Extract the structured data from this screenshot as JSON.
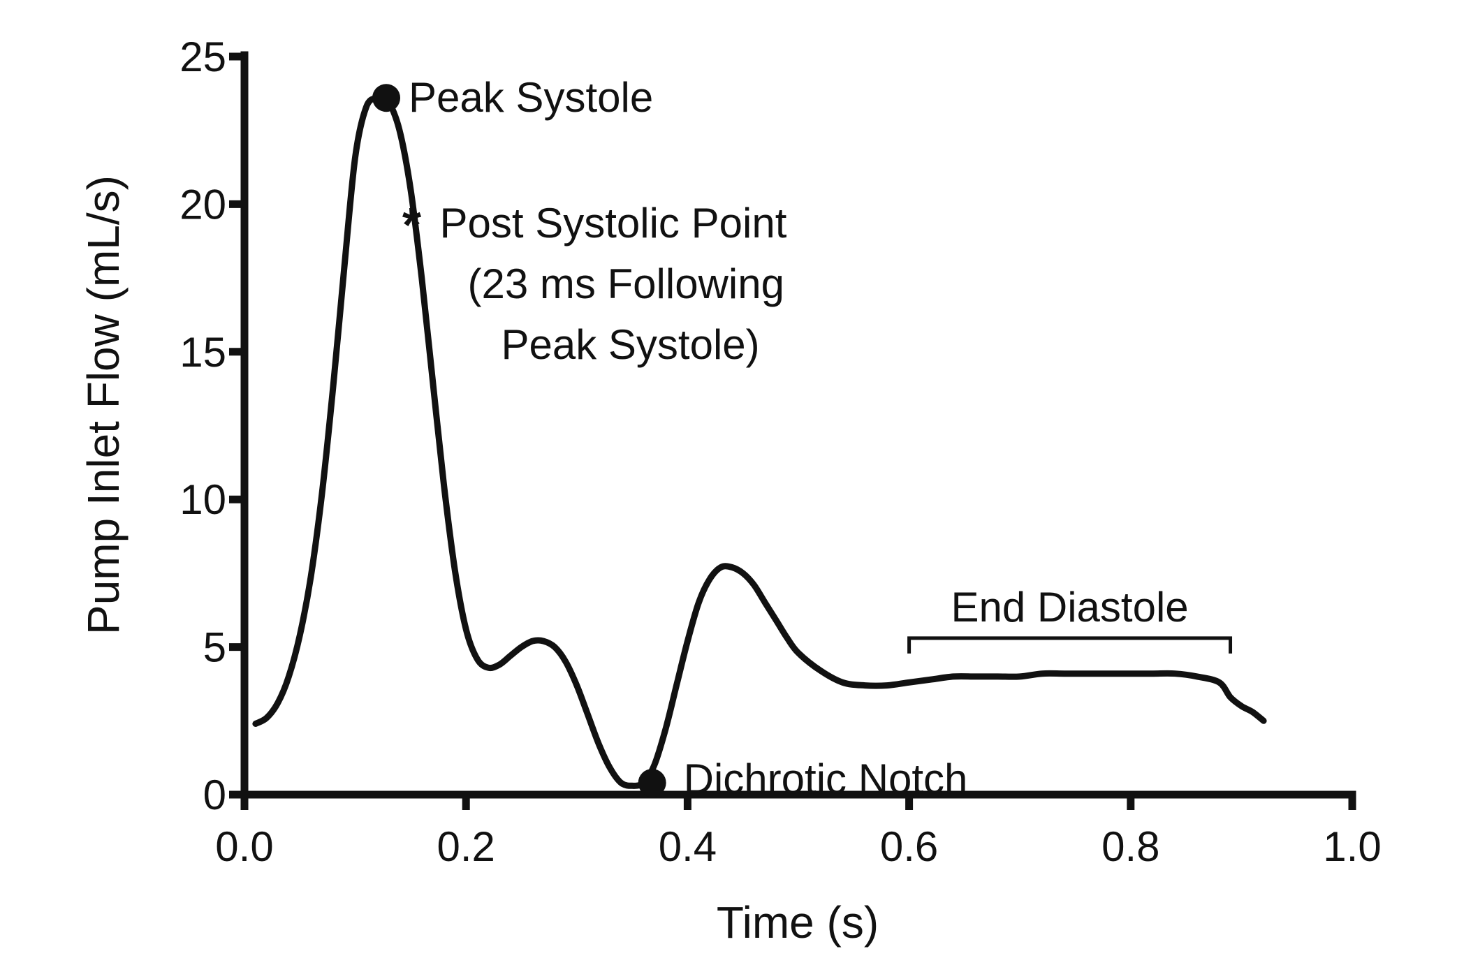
{
  "chart_data": {
    "type": "line",
    "title": "",
    "xlabel": "Time (s)",
    "ylabel": "Pump Inlet Flow (mL/s)",
    "xlim": [
      0.0,
      1.0
    ],
    "ylim": [
      0,
      25
    ],
    "xticks": [
      0.0,
      0.2,
      0.4,
      0.6,
      0.8,
      1.0
    ],
    "xtick_labels": [
      "0.0",
      "0.2",
      "0.4",
      "0.6",
      "0.8",
      "1.0"
    ],
    "yticks": [
      0,
      5,
      10,
      15,
      20,
      25
    ],
    "ytick_labels": [
      "0",
      "5",
      "10",
      "15",
      "20",
      "25"
    ],
    "grid": false,
    "legend": "none",
    "line_color": "#111111",
    "series": [
      {
        "x": [
          0.01,
          0.02,
          0.03,
          0.04,
          0.05,
          0.06,
          0.07,
          0.08,
          0.09,
          0.1,
          0.11,
          0.12,
          0.125,
          0.13,
          0.14,
          0.15,
          0.16,
          0.17,
          0.18,
          0.19,
          0.2,
          0.21,
          0.22,
          0.23,
          0.24,
          0.25,
          0.26,
          0.27,
          0.28,
          0.29,
          0.3,
          0.31,
          0.32,
          0.33,
          0.34,
          0.35,
          0.36,
          0.37,
          0.38,
          0.39,
          0.4,
          0.41,
          0.42,
          0.43,
          0.44,
          0.45,
          0.46,
          0.47,
          0.48,
          0.49,
          0.5,
          0.52,
          0.54,
          0.56,
          0.58,
          0.6,
          0.62,
          0.64,
          0.66,
          0.68,
          0.7,
          0.72,
          0.74,
          0.76,
          0.78,
          0.8,
          0.82,
          0.84,
          0.86,
          0.88,
          0.89,
          0.9,
          0.91,
          0.92
        ],
        "y": [
          2.4,
          2.6,
          3.1,
          4.0,
          5.4,
          7.4,
          10.2,
          13.8,
          17.8,
          21.6,
          23.3,
          23.6,
          23.6,
          23.5,
          22.5,
          20.5,
          17.5,
          14.0,
          10.5,
          7.6,
          5.6,
          4.6,
          4.3,
          4.4,
          4.7,
          5.0,
          5.2,
          5.2,
          5.0,
          4.5,
          3.7,
          2.7,
          1.7,
          0.9,
          0.4,
          0.3,
          0.4,
          1.0,
          2.2,
          3.7,
          5.2,
          6.5,
          7.3,
          7.7,
          7.7,
          7.5,
          7.1,
          6.5,
          5.9,
          5.3,
          4.8,
          4.2,
          3.8,
          3.7,
          3.7,
          3.8,
          3.9,
          4.0,
          4.0,
          4.0,
          4.0,
          4.1,
          4.1,
          4.1,
          4.1,
          4.1,
          4.1,
          4.1,
          4.0,
          3.8,
          3.3,
          3.0,
          2.8,
          2.5
        ]
      }
    ],
    "annotations": {
      "peak_systole": {
        "label": "Peak Systole",
        "x": 0.128,
        "y": 23.6
      },
      "post_systolic": {
        "lines": [
          "Post Systolic Point",
          "(23 ms Following",
          "Peak Systole)"
        ],
        "x": 0.151,
        "y": 19.4
      },
      "dichrotic_notch": {
        "label": "Dichrotic Notch",
        "x": 0.368,
        "y": 0.4
      },
      "end_diastole": {
        "label": "End Diastole",
        "x_start": 0.6,
        "x_end": 0.89,
        "y": 5.3
      }
    }
  }
}
